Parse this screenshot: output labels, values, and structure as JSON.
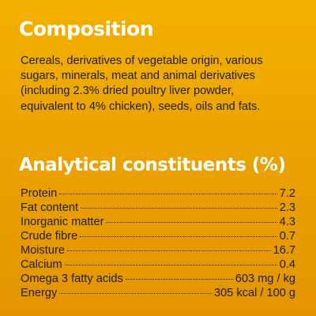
{
  "composition": {
    "title": "Composition",
    "lines": [
      "Cereals, derivatives of vegetable origin, various",
      "sugars, minerals, meat and animal derivatives",
      "(including 2.3% dried poultry liver powder,",
      "equivalent to 4% chicken), seeds, oils and fats."
    ]
  },
  "analytical": {
    "title": "Analytical constituents (%)",
    "rows": [
      {
        "label": "Protein",
        "value": "7.2"
      },
      {
        "label": "Fat content",
        "value": "2.3"
      },
      {
        "label": "Inorganic matter",
        "value": "4.3"
      },
      {
        "label": "Crude fibre",
        "value": "0.7"
      },
      {
        "label": "Moisture",
        "value": "16.7"
      },
      {
        "label": "Calcium",
        "value": "0.4"
      },
      {
        "label": "Omega 3 fatty acids",
        "value": "603 mg / kg"
      },
      {
        "label": "Energy",
        "value": "305 kcal / 100 g"
      }
    ]
  },
  "colors": {
    "background_top": "#f4b000",
    "background_bottom": "#e39400",
    "heading": "#ffffff",
    "text": "#1d1d1d"
  }
}
